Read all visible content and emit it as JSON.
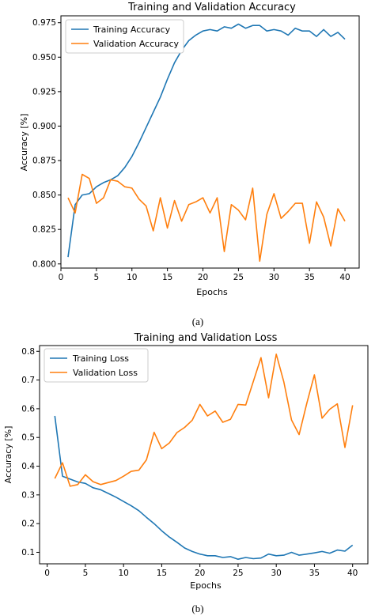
{
  "colors": {
    "training": "#1f77b4",
    "validation": "#ff7f0e"
  },
  "chart_data": [
    {
      "type": "line",
      "title": "Training and Validation Accuracy",
      "xlabel": "Epochs",
      "ylabel": "Accuracy [%]",
      "xlim": [
        0,
        42
      ],
      "ylim": [
        0.797,
        0.98
      ],
      "xticks": [
        0,
        5,
        10,
        15,
        20,
        25,
        30,
        35,
        40
      ],
      "yticks": [
        0.8,
        0.825,
        0.85,
        0.875,
        0.9,
        0.925,
        0.95,
        0.975
      ],
      "ytick_labels": [
        "0.800",
        "0.825",
        "0.850",
        "0.875",
        "0.900",
        "0.925",
        "0.950",
        "0.975"
      ],
      "legend": "top-left",
      "grid": false,
      "caption": "(a)",
      "x": [
        1,
        2,
        3,
        4,
        5,
        6,
        7,
        8,
        9,
        10,
        11,
        12,
        13,
        14,
        15,
        16,
        17,
        18,
        19,
        20,
        21,
        22,
        23,
        24,
        25,
        26,
        27,
        28,
        29,
        30,
        31,
        32,
        33,
        34,
        35,
        36,
        37,
        38,
        39,
        40
      ],
      "series": [
        {
          "name": "Training Accuracy",
          "color": "#1f77b4",
          "values": [
            0.805,
            0.843,
            0.85,
            0.851,
            0.856,
            0.859,
            0.861,
            0.864,
            0.87,
            0.878,
            0.888,
            0.899,
            0.91,
            0.921,
            0.934,
            0.946,
            0.955,
            0.962,
            0.966,
            0.969,
            0.97,
            0.969,
            0.972,
            0.971,
            0.974,
            0.971,
            0.973,
            0.973,
            0.969,
            0.97,
            0.969,
            0.966,
            0.971,
            0.969,
            0.969,
            0.965,
            0.97,
            0.965,
            0.968,
            0.963
          ]
        },
        {
          "name": "Validation Accuracy",
          "color": "#ff7f0e",
          "values": [
            0.848,
            0.837,
            0.865,
            0.862,
            0.844,
            0.848,
            0.861,
            0.86,
            0.856,
            0.855,
            0.847,
            0.842,
            0.824,
            0.848,
            0.826,
            0.846,
            0.831,
            0.843,
            0.845,
            0.848,
            0.837,
            0.848,
            0.809,
            0.843,
            0.839,
            0.832,
            0.855,
            0.802,
            0.836,
            0.851,
            0.833,
            0.838,
            0.844,
            0.844,
            0.815,
            0.845,
            0.834,
            0.813,
            0.84,
            0.831
          ]
        }
      ]
    },
    {
      "type": "line",
      "title": "Training and Validation Loss",
      "xlabel": "Epochs",
      "ylabel": "Accuracy [%]",
      "xlim": [
        -1,
        42
      ],
      "ylim": [
        0.06,
        0.82
      ],
      "xticks": [
        0,
        5,
        10,
        15,
        20,
        25,
        30,
        35,
        40
      ],
      "yticks": [
        0.1,
        0.2,
        0.3,
        0.4,
        0.5,
        0.6,
        0.7,
        0.8
      ],
      "ytick_labels": [
        "0.1",
        "0.2",
        "0.3",
        "0.4",
        "0.5",
        "0.6",
        "0.7",
        "0.8"
      ],
      "legend": "top-left",
      "grid": false,
      "caption": "(b)",
      "x": [
        1,
        2,
        3,
        4,
        5,
        6,
        7,
        8,
        9,
        10,
        11,
        12,
        13,
        14,
        15,
        16,
        17,
        18,
        19,
        20,
        21,
        22,
        23,
        24,
        25,
        26,
        27,
        28,
        29,
        30,
        31,
        32,
        33,
        34,
        35,
        36,
        37,
        38,
        39,
        40
      ],
      "series": [
        {
          "name": "Training Loss",
          "color": "#1f77b4",
          "values": [
            0.575,
            0.365,
            0.355,
            0.345,
            0.34,
            0.325,
            0.318,
            0.305,
            0.292,
            0.277,
            0.262,
            0.245,
            0.222,
            0.2,
            0.175,
            0.153,
            0.135,
            0.115,
            0.103,
            0.094,
            0.088,
            0.088,
            0.082,
            0.085,
            0.076,
            0.082,
            0.078,
            0.08,
            0.094,
            0.088,
            0.09,
            0.1,
            0.09,
            0.094,
            0.098,
            0.103,
            0.097,
            0.108,
            0.104,
            0.125
          ]
        },
        {
          "name": "Validation Loss",
          "color": "#ff7f0e",
          "values": [
            0.357,
            0.412,
            0.33,
            0.336,
            0.37,
            0.346,
            0.336,
            0.343,
            0.35,
            0.365,
            0.382,
            0.386,
            0.422,
            0.518,
            0.461,
            0.481,
            0.517,
            0.535,
            0.56,
            0.615,
            0.575,
            0.592,
            0.553,
            0.563,
            0.615,
            0.613,
            0.695,
            0.778,
            0.638,
            0.79,
            0.693,
            0.561,
            0.51,
            0.619,
            0.718,
            0.567,
            0.598,
            0.617,
            0.465,
            0.612
          ]
        }
      ]
    }
  ]
}
